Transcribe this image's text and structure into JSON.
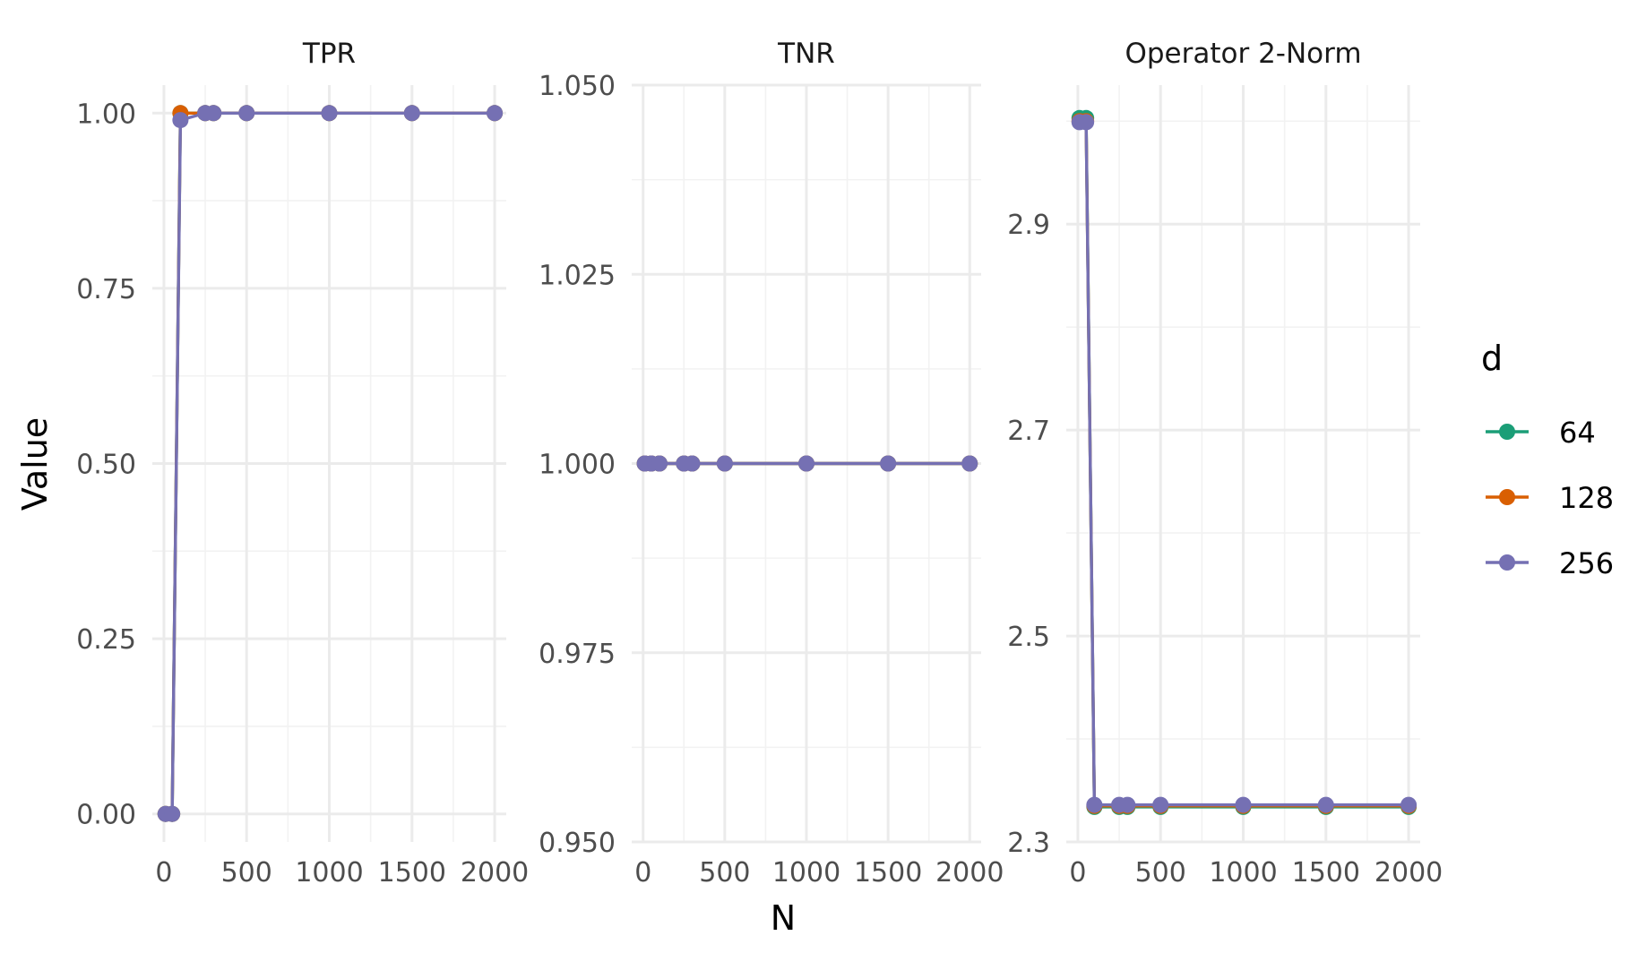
{
  "chart_data": {
    "type": "line",
    "xlabel": "N",
    "ylabel": "Value",
    "legend": {
      "title": "d",
      "placement": "right",
      "entries": [
        "64",
        "128",
        "256"
      ]
    },
    "series_colors": {
      "64": "#1b9e77",
      "128": "#d95f02",
      "256": "#7570b3"
    },
    "grid": true,
    "panels": [
      {
        "title": "TPR",
        "xlim": [
          -70,
          2070
        ],
        "ylim": [
          -0.04,
          1.04
        ],
        "xticks": [
          0,
          500,
          1000,
          1500,
          2000
        ],
        "xtick_labels": [
          "0",
          "500",
          "1000",
          "1500",
          "2000"
        ],
        "yticks": [
          0,
          0.25,
          0.5,
          0.75,
          1.0
        ],
        "ytick_labels": [
          "0.00",
          "0.25",
          "0.50",
          "0.75",
          "1.00"
        ],
        "series": [
          {
            "name": "64",
            "x": [
              10,
              50,
              100,
              250,
              300,
              500,
              1000,
              1500,
              2000
            ],
            "y": [
              0,
              0,
              1,
              1,
              1,
              1,
              1,
              1,
              1
            ]
          },
          {
            "name": "128",
            "x": [
              10,
              50,
              100,
              250,
              300,
              500,
              1000,
              1500,
              2000
            ],
            "y": [
              0,
              0,
              1,
              1,
              1,
              1,
              1,
              1,
              1
            ]
          },
          {
            "name": "256",
            "x": [
              10,
              50,
              100,
              250,
              300,
              500,
              1000,
              1500,
              2000
            ],
            "y": [
              0,
              0,
              0.99,
              1,
              1,
              1,
              1,
              1,
              1
            ]
          }
        ]
      },
      {
        "title": "TNR",
        "xlim": [
          -70,
          2070
        ],
        "ylim": [
          0.95,
          1.05
        ],
        "xticks": [
          0,
          500,
          1000,
          1500,
          2000
        ],
        "xtick_labels": [
          "0",
          "500",
          "1000",
          "1500",
          "2000"
        ],
        "yticks": [
          0.95,
          0.975,
          1.0,
          1.025,
          1.05
        ],
        "ytick_labels": [
          "0.950",
          "0.975",
          "1.000",
          "1.025",
          "1.050"
        ],
        "series": [
          {
            "name": "64",
            "x": [
              10,
              50,
              100,
              250,
              300,
              500,
              1000,
              1500,
              2000
            ],
            "y": [
              1,
              1,
              1,
              1,
              1,
              1,
              1,
              1,
              1
            ]
          },
          {
            "name": "128",
            "x": [
              10,
              50,
              100,
              250,
              300,
              500,
              1000,
              1500,
              2000
            ],
            "y": [
              1,
              1,
              1,
              1,
              1,
              1,
              1,
              1,
              1
            ]
          },
          {
            "name": "256",
            "x": [
              10,
              50,
              100,
              250,
              300,
              500,
              1000,
              1500,
              2000
            ],
            "y": [
              1,
              1,
              1,
              1,
              1,
              1,
              1,
              1,
              1
            ]
          }
        ]
      },
      {
        "title": "Operator 2-Norm",
        "xlim": [
          -70,
          2070
        ],
        "ylim": [
          2.3,
          3.035
        ],
        "xticks": [
          0,
          500,
          1000,
          1500,
          2000
        ],
        "xtick_labels": [
          "0",
          "500",
          "1000",
          "1500",
          "2000"
        ],
        "yticks": [
          2.3,
          2.5,
          2.7,
          2.9
        ],
        "ytick_labels": [
          "2.3",
          "2.5",
          "2.7",
          "2.9"
        ],
        "series": [
          {
            "name": "64",
            "x": [
              10,
              50,
              100,
              250,
              300,
              500,
              1000,
              1500,
              2000
            ],
            "y": [
              3.003,
              3.003,
              2.334,
              2.334,
              2.334,
              2.334,
              2.334,
              2.334,
              2.334
            ]
          },
          {
            "name": "128",
            "x": [
              10,
              50,
              100,
              250,
              300,
              500,
              1000,
              1500,
              2000
            ],
            "y": [
              3.0,
              3.0,
              2.335,
              2.335,
              2.335,
              2.335,
              2.335,
              2.335,
              2.335
            ]
          },
          {
            "name": "256",
            "x": [
              10,
              50,
              100,
              250,
              300,
              500,
              1000,
              1500,
              2000
            ],
            "y": [
              2.999,
              2.999,
              2.336,
              2.336,
              2.336,
              2.336,
              2.336,
              2.336,
              2.336
            ]
          }
        ]
      }
    ]
  }
}
